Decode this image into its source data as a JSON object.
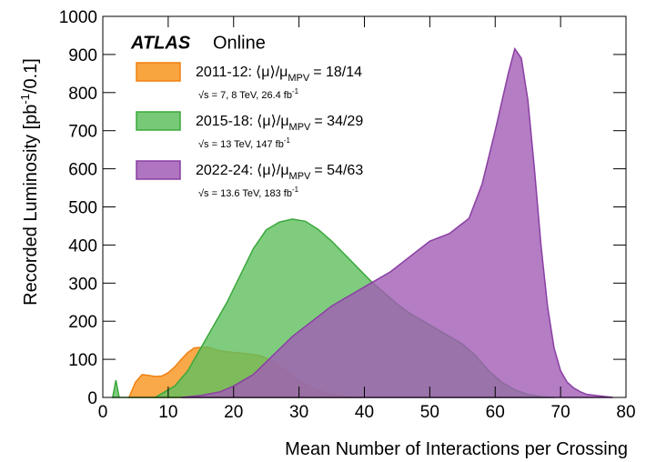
{
  "chart_data": {
    "type": "area",
    "brand": "ATLAS",
    "subtitle": "Online",
    "xlabel": "Mean Number of Interactions per Crossing",
    "ylabel": {
      "main": "Recorded Luminosity [pb",
      "sup": "-1",
      "tail": "/0.1]"
    },
    "xlim": [
      0,
      80
    ],
    "xticks": [
      0,
      10,
      20,
      30,
      40,
      50,
      60,
      70,
      80
    ],
    "ylim": [
      0,
      1000
    ],
    "yticks": [
      0,
      100,
      200,
      300,
      400,
      500,
      600,
      700,
      800,
      900,
      1000
    ],
    "series": [
      {
        "name": "2011-12:",
        "mu_label": "⟨μ⟩/μ",
        "mu_sub": "MPV",
        "mu_ratio": "= 18/14",
        "energy": "√s = 7, 8 TeV, 26.4 fb",
        "energy_sup": "-1",
        "color": "#f7941d",
        "line_color": "#f08010",
        "x": [
          4,
          5,
          6,
          7,
          8,
          9,
          10,
          11,
          12,
          13,
          14,
          16,
          18,
          20,
          22,
          24,
          26,
          28,
          30,
          32,
          34,
          36,
          38,
          40
        ],
        "values": [
          0,
          40,
          60,
          58,
          55,
          56,
          65,
          80,
          100,
          118,
          130,
          132,
          122,
          118,
          115,
          110,
          95,
          70,
          45,
          25,
          12,
          5,
          1,
          0
        ]
      },
      {
        "name": "2015-18:",
        "mu_label": "⟨μ⟩/μ",
        "mu_sub": "MPV",
        "mu_ratio": "= 34/29",
        "energy": "√s = 13 TeV, 147 fb",
        "energy_sup": "-1",
        "color": "#5fbf5f",
        "line_color": "#3aa83a",
        "x": [
          1.5,
          2,
          2.5,
          3,
          8,
          9,
          11,
          13,
          15,
          17,
          19,
          21,
          23,
          25,
          27,
          29,
          31,
          33,
          35,
          37,
          39,
          41,
          43,
          45,
          47,
          49,
          51,
          53,
          55,
          57,
          59,
          61,
          63,
          65,
          67,
          69
        ],
        "values": [
          0,
          45,
          0,
          0,
          0,
          10,
          30,
          70,
          130,
          190,
          250,
          320,
          390,
          440,
          460,
          468,
          462,
          440,
          410,
          375,
          340,
          305,
          275,
          245,
          220,
          200,
          180,
          160,
          140,
          110,
          70,
          40,
          20,
          8,
          2,
          0
        ]
      },
      {
        "name": "2022-24:",
        "mu_label": "⟨μ⟩/μ",
        "mu_sub": "MPV",
        "mu_ratio": "= 54/63",
        "energy": "√s = 13.6 TeV, 183 fb",
        "energy_sup": "-1",
        "color": "#a15db5",
        "line_color": "#8a3fa3",
        "x": [
          12,
          15,
          18,
          20,
          23,
          26,
          29,
          32,
          35,
          38,
          41,
          44,
          47,
          50,
          53,
          56,
          58,
          60,
          62,
          63,
          64,
          65,
          66,
          67,
          68,
          69,
          70,
          71,
          72,
          73,
          74,
          76,
          78
        ],
        "values": [
          0,
          5,
          15,
          30,
          60,
          110,
          160,
          200,
          240,
          270,
          300,
          330,
          370,
          410,
          430,
          470,
          560,
          700,
          850,
          915,
          890,
          780,
          600,
          400,
          240,
          130,
          70,
          40,
          25,
          15,
          8,
          4,
          0
        ]
      }
    ]
  }
}
